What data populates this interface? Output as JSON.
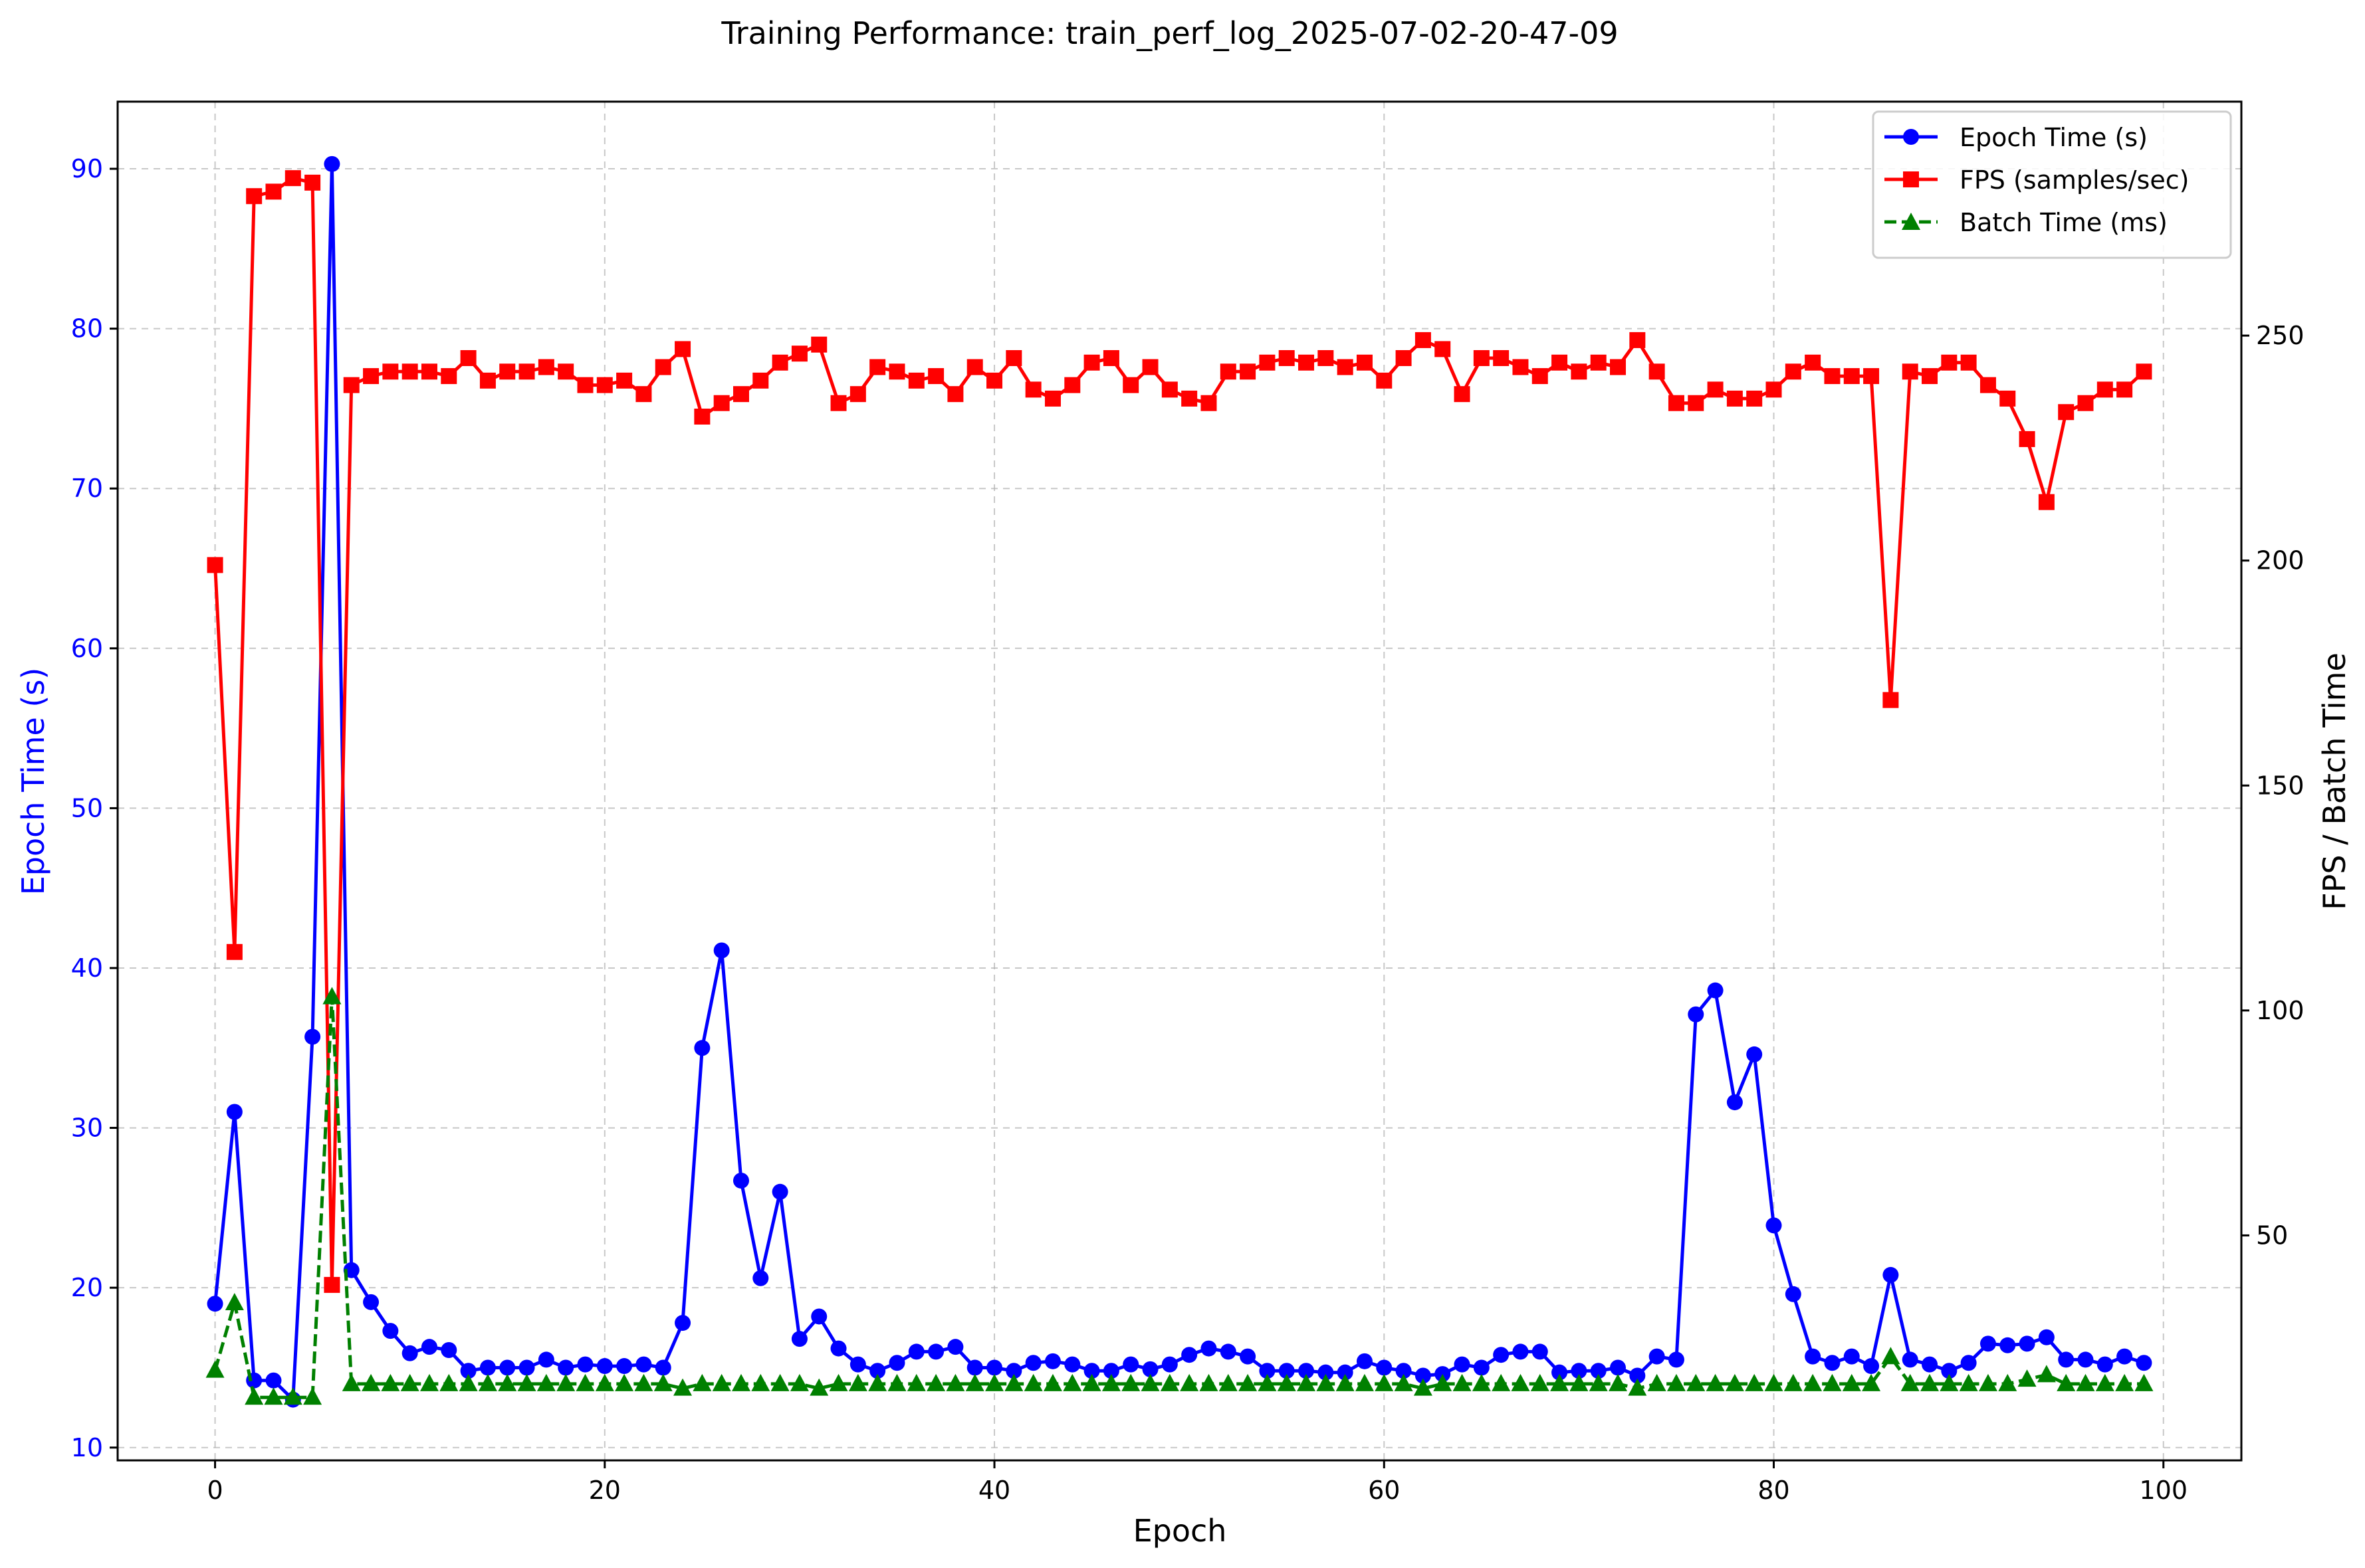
{
  "chart_data": {
    "type": "line",
    "title": "Training Performance: train_perf_log_2025-07-02-20-47-09",
    "xlabel": "Epoch",
    "ylabel_left": "Epoch Time (s)",
    "ylabel_right": "FPS / Batch Time",
    "xlim": [
      -5,
      104
    ],
    "ylim_left": [
      9.2,
      94.2
    ],
    "ylim_right": [
      0,
      302
    ],
    "xticks": [
      0,
      20,
      40,
      60,
      80,
      100
    ],
    "yticks_left": [
      10,
      20,
      30,
      40,
      50,
      60,
      70,
      80,
      90
    ],
    "yticks_right": [
      50,
      100,
      150,
      200,
      250
    ],
    "grid": true,
    "legend_position": "top-right",
    "colors": {
      "epoch_time": "#0000ff",
      "fps": "#ff0000",
      "batch_time": "#008000",
      "grid": "#b0b0b0",
      "left_axis_text": "#0000ff"
    },
    "x": [
      0,
      1,
      2,
      3,
      4,
      5,
      6,
      7,
      8,
      9,
      10,
      11,
      12,
      13,
      14,
      15,
      16,
      17,
      18,
      19,
      20,
      21,
      22,
      23,
      24,
      25,
      26,
      27,
      28,
      29,
      30,
      31,
      32,
      33,
      34,
      35,
      36,
      37,
      38,
      39,
      40,
      41,
      42,
      43,
      44,
      45,
      46,
      47,
      48,
      49,
      50,
      51,
      52,
      53,
      54,
      55,
      56,
      57,
      58,
      59,
      60,
      61,
      62,
      63,
      64,
      65,
      66,
      67,
      68,
      69,
      70,
      71,
      72,
      73,
      74,
      75,
      76,
      77,
      78,
      79,
      80,
      81,
      82,
      83,
      84,
      85,
      86,
      87,
      88,
      89,
      90,
      91,
      92,
      93,
      94,
      95,
      96,
      97,
      98,
      99
    ],
    "series": [
      {
        "name": "Epoch Time (s)",
        "axis": "left",
        "marker": "circle",
        "linestyle": "solid",
        "values": [
          19.0,
          31.0,
          14.2,
          14.2,
          13.0,
          35.7,
          90.3,
          21.1,
          19.1,
          17.3,
          15.9,
          16.3,
          16.1,
          14.8,
          15.0,
          15.0,
          15.0,
          15.5,
          15.0,
          15.2,
          15.1,
          15.1,
          15.2,
          15.0,
          17.8,
          35.0,
          41.1,
          26.7,
          20.6,
          26.0,
          16.8,
          18.2,
          16.2,
          15.2,
          14.8,
          15.3,
          16.0,
          16.0,
          16.3,
          15.0,
          15.0,
          14.8,
          15.3,
          15.4,
          15.2,
          14.8,
          14.8,
          15.2,
          14.9,
          15.2,
          15.8,
          16.2,
          16.0,
          15.7,
          14.8,
          14.8,
          14.8,
          14.7,
          14.7,
          15.4,
          15.0,
          14.8,
          14.5,
          14.6,
          15.2,
          15.0,
          15.8,
          16.0,
          16.0,
          14.7,
          14.8,
          14.8,
          15.0,
          14.5,
          15.7,
          15.5,
          37.1,
          38.6,
          31.6,
          34.6,
          23.9,
          19.6,
          15.7,
          15.3,
          15.7,
          15.1,
          20.8,
          15.5,
          15.2,
          14.8,
          15.3,
          16.5,
          16.4,
          16.5,
          16.9,
          15.5,
          15.5,
          15.2,
          15.7,
          15.3
        ]
      },
      {
        "name": "FPS (samples/sec)",
        "axis": "right",
        "marker": "square",
        "linestyle": "solid",
        "values": [
          199,
          113,
          281,
          282,
          285,
          284,
          39,
          239,
          241,
          242,
          242,
          242,
          241,
          245,
          240,
          242,
          242,
          243,
          242,
          239,
          239,
          240,
          237,
          243,
          247,
          232,
          235,
          237,
          240,
          244,
          246,
          248,
          235,
          237,
          243,
          242,
          240,
          241,
          237,
          243,
          240,
          245,
          238,
          236,
          239,
          244,
          245,
          239,
          243,
          238,
          236,
          235,
          242,
          242,
          244,
          245,
          244,
          245,
          243,
          244,
          240,
          245,
          249,
          247,
          237,
          245,
          245,
          243,
          241,
          244,
          242,
          244,
          243,
          249,
          242,
          235,
          235,
          238,
          236,
          236,
          238,
          242,
          244,
          241,
          241,
          241,
          169,
          242,
          241,
          244,
          244,
          239,
          236,
          227,
          213,
          233,
          235,
          238,
          238,
          242
        ]
      },
      {
        "name": "Batch Time (ms)",
        "axis": "right",
        "marker": "triangle",
        "linestyle": "dashed",
        "values": [
          20,
          35,
          14,
          14,
          14,
          14,
          103,
          17,
          17,
          17,
          17,
          17,
          17,
          17,
          17,
          17,
          17,
          17,
          17,
          17,
          17,
          17,
          17,
          17,
          16,
          17,
          17,
          17,
          17,
          17,
          17,
          16,
          17,
          17,
          17,
          17,
          17,
          17,
          17,
          17,
          17,
          17,
          17,
          17,
          17,
          17,
          17,
          17,
          17,
          17,
          17,
          17,
          17,
          17,
          17,
          17,
          17,
          17,
          17,
          17,
          17,
          17,
          16,
          17,
          17,
          17,
          17,
          17,
          17,
          17,
          17,
          17,
          17,
          16,
          17,
          17,
          17,
          17,
          17,
          17,
          17,
          17,
          17,
          17,
          17,
          17,
          23,
          17,
          17,
          17,
          17,
          17,
          17,
          18,
          19,
          17,
          17,
          17,
          17,
          17
        ]
      }
    ]
  }
}
